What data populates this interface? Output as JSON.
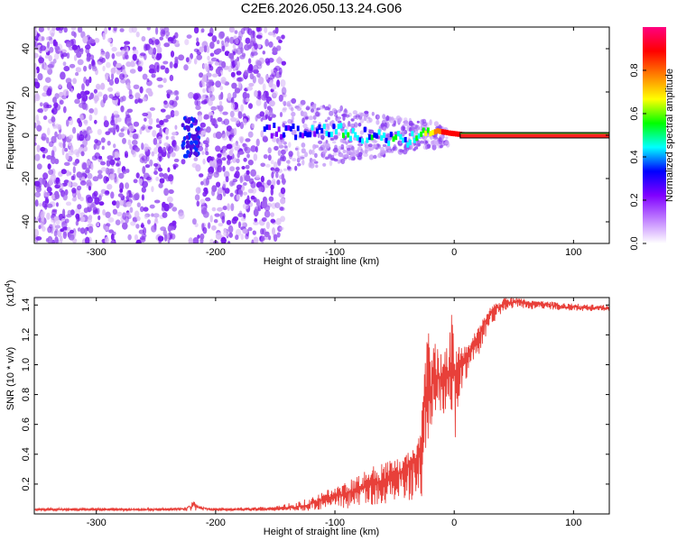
{
  "title": "C2E6.2026.050.13.24.G06",
  "chart_data": [
    {
      "type": "heatmap",
      "xlabel": "Height of straight line (km)",
      "ylabel": "Frequency (Hz)",
      "xlim": [
        -352,
        130
      ],
      "ylim": [
        -50,
        50
      ],
      "x_ticks": [
        -300,
        -200,
        -100,
        0,
        100
      ],
      "x_tick_labels": [
        "-300",
        "-200",
        "-100",
        "0",
        "100"
      ],
      "y_ticks": [
        -40,
        -20,
        0,
        20,
        40
      ],
      "y_tick_labels": [
        "-40",
        "-20",
        "0",
        "20",
        "40"
      ],
      "colorbar": {
        "label": "Normalized spectral amplitude",
        "range": [
          0,
          1
        ],
        "ticks": [
          0.0,
          0.2,
          0.4,
          0.6,
          0.8
        ],
        "tick_labels": [
          "0.0",
          "0.2",
          "0.4",
          "0.6",
          "0.8"
        ],
        "colors": [
          "#ffffff",
          "#c080ff",
          "#8000ff",
          "#0000ff",
          "#00ffff",
          "#00ff00",
          "#ffff00",
          "#ff8000",
          "#ff0000",
          "#ff0080"
        ]
      },
      "carrier_track": [
        {
          "x": -160,
          "y": 2,
          "amp": 0.25
        },
        {
          "x": -120,
          "y": 1,
          "amp": 0.35
        },
        {
          "x": -100,
          "y": 2,
          "amp": 0.4
        },
        {
          "x": -80,
          "y": 0,
          "amp": 0.45
        },
        {
          "x": -60,
          "y": -1,
          "amp": 0.45
        },
        {
          "x": -40,
          "y": -3,
          "amp": 0.45
        },
        {
          "x": -25,
          "y": 0,
          "amp": 0.6
        },
        {
          "x": -15,
          "y": 2,
          "amp": 0.8
        },
        {
          "x": -5,
          "y": 1,
          "amp": 0.9
        },
        {
          "x": 10,
          "y": 0,
          "amp": 0.95
        },
        {
          "x": 130,
          "y": 0,
          "amp": 0.95
        }
      ]
    },
    {
      "type": "line",
      "xlabel": "Height of straight line (km)",
      "ylabel": "SNR (10 * v/v)",
      "y_multiplier": "(x10",
      "y_multiplier_exp": "4",
      "y_multiplier_close": ")",
      "xlim": [
        -352,
        130
      ],
      "ylim": [
        0,
        1.45
      ],
      "x_ticks": [
        -300,
        -200,
        -100,
        0,
        100
      ],
      "x_tick_labels": [
        "-300",
        "-200",
        "-100",
        "0",
        "100"
      ],
      "y_ticks": [
        0.2,
        0.4,
        0.6,
        0.8,
        1.0,
        1.2,
        1.4
      ],
      "y_tick_labels": [
        "0.2",
        "0.4",
        "0.6",
        "0.8",
        "1.0",
        "1.2",
        "1.4"
      ],
      "color": "#e8403a",
      "series": [
        {
          "x": [
            -352,
            -300,
            -250,
            -225,
            -218,
            -212,
            -205,
            -180,
            -150,
            -125,
            -110,
            -100,
            -90,
            -80,
            -70,
            -60,
            -50,
            -40,
            -33,
            -28,
            -25,
            -22,
            -20,
            -15,
            -10,
            -5,
            -2,
            0,
            5,
            10,
            15,
            20,
            25,
            30,
            40,
            50,
            70,
            90,
            110,
            130
          ],
          "y": [
            0.03,
            0.03,
            0.03,
            0.035,
            0.09,
            0.05,
            0.03,
            0.03,
            0.035,
            0.05,
            0.1,
            0.12,
            0.14,
            0.17,
            0.2,
            0.22,
            0.25,
            0.3,
            0.35,
            0.45,
            0.7,
            0.8,
            0.85,
            0.9,
            0.92,
            0.95,
            1.0,
            0.95,
            1.0,
            1.05,
            1.1,
            1.2,
            1.28,
            1.35,
            1.4,
            1.42,
            1.41,
            1.39,
            1.38,
            1.38
          ]
        }
      ],
      "noise_envelope": {
        "x": [
          -352,
          -200,
          -150,
          -125,
          -110,
          -100,
          -90,
          -80,
          -70,
          -60,
          -50,
          -40,
          -33,
          -28,
          -25,
          -22,
          -20,
          -15,
          -10,
          -5,
          -2,
          0,
          5,
          10,
          15,
          20,
          25,
          30,
          40,
          50,
          70,
          100,
          130
        ],
        "hi": [
          0.04,
          0.04,
          0.05,
          0.1,
          0.15,
          0.18,
          0.22,
          0.28,
          0.32,
          0.35,
          0.36,
          0.4,
          0.45,
          0.55,
          1.05,
          1.3,
          1.1,
          1.15,
          1.1,
          1.2,
          1.38,
          1.12,
          1.13,
          1.15,
          1.18,
          1.26,
          1.32,
          1.38,
          1.45,
          1.45,
          1.43,
          1.41,
          1.4
        ],
        "lo": [
          0.02,
          0.02,
          0.02,
          0.02,
          0.03,
          0.03,
          0.03,
          0.04,
          0.05,
          0.06,
          0.08,
          0.1,
          0.08,
          0.05,
          0.35,
          0.45,
          0.55,
          0.6,
          0.65,
          0.7,
          0.6,
          0.45,
          0.8,
          0.9,
          0.95,
          1.05,
          1.15,
          1.25,
          1.35,
          1.38,
          1.37,
          1.36,
          1.36
        ]
      }
    }
  ]
}
